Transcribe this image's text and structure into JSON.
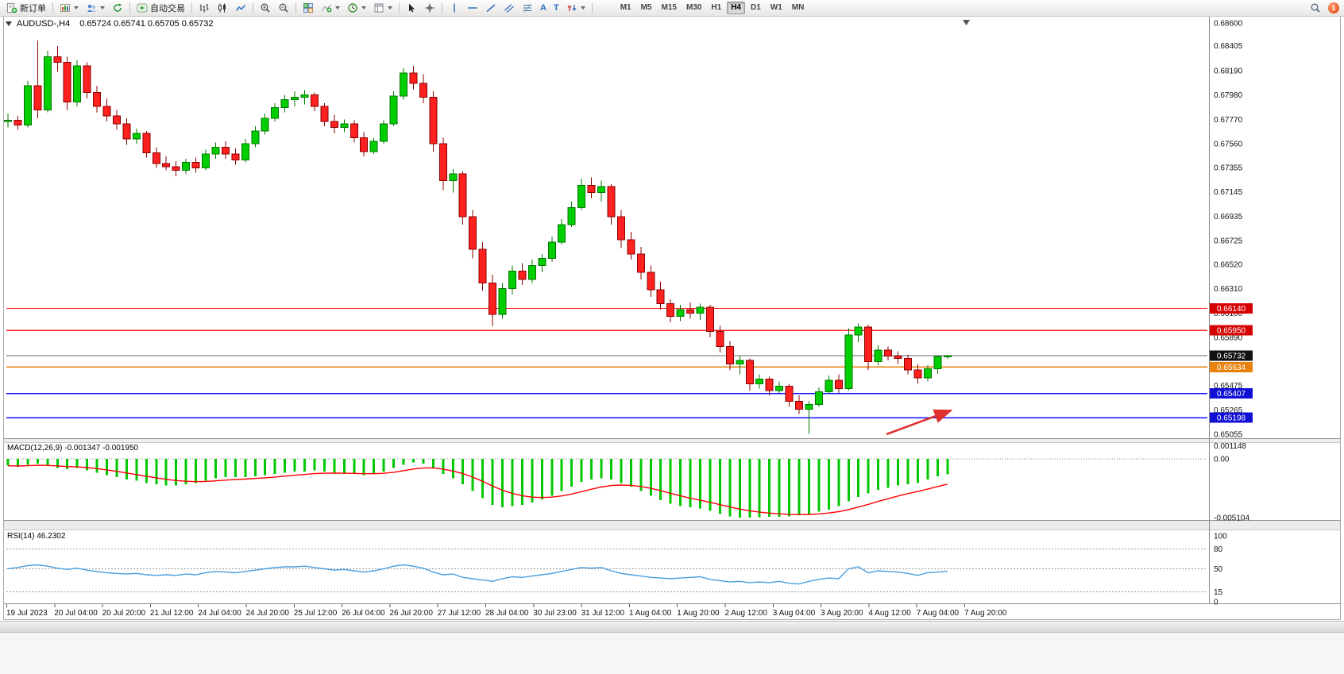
{
  "toolbar": {
    "new_order_label": "新订单",
    "autotrade_label": "自动交易",
    "text_icon_glyph": "A",
    "label_icon_glyph": "T",
    "timeframes": [
      "M1",
      "M5",
      "M15",
      "M30",
      "H1",
      "H4",
      "D1",
      "W1",
      "MN"
    ],
    "active_timeframe": "H4",
    "notification_badge": "1"
  },
  "chart_data": {
    "type": "candlestick",
    "title": "AUDUSD-,H4",
    "symbol_period": "AUDUSD-,H4",
    "ohlc_text": "0.65724 0.65741 0.65705 0.65732",
    "current": {
      "open": 0.65724,
      "high": 0.65741,
      "low": 0.65705,
      "close": 0.65732
    },
    "price_scale": [
      "0.68600",
      "0.68405",
      "0.68190",
      "0.67980",
      "0.67770",
      "0.67560",
      "0.67355",
      "0.67145",
      "0.66935",
      "0.66725",
      "0.66520",
      "0.66310",
      "0.66100",
      "0.65890",
      "0.65475",
      "0.65265",
      "0.65055"
    ],
    "time_labels": [
      "19 Jul 2023",
      "20 Jul 04:00",
      "20 Jul 20:00",
      "21 Jul 12:00",
      "24 Jul 04:00",
      "24 Jul 20:00",
      "25 Jul 12:00",
      "26 Jul 04:00",
      "26 Jul 20:00",
      "27 Jul 12:00",
      "28 Jul 04:00",
      "30 Jul 23:00",
      "31 Jul 12:00",
      "1 Aug 04:00",
      "1 Aug 20:00",
      "2 Aug 12:00",
      "3 Aug 04:00",
      "3 Aug 20:00",
      "4 Aug 12:00",
      "7 Aug 04:00",
      "7 Aug 20:00"
    ],
    "levels": [
      {
        "value": 0.6614,
        "text": "0.66140",
        "line": "#ff2020",
        "box": "#d60000"
      },
      {
        "value": 0.6595,
        "text": "0.65950",
        "line": "#ff2020",
        "box": "#d60000"
      },
      {
        "value": 0.65732,
        "text": "0.65732",
        "line": "#666666",
        "box": "#111111"
      },
      {
        "value": 0.65634,
        "text": "0.65634",
        "line": "#e8820c",
        "box": "#e8820c"
      },
      {
        "value": 0.65407,
        "text": "0.65407",
        "line": "#1414ff",
        "box": "#0f0fd6"
      },
      {
        "value": 0.65198,
        "text": "0.65198",
        "line": "#1414ff",
        "box": "#0f0fd6"
      }
    ],
    "colors": {
      "up": "#00CE00",
      "up_border": "#007700",
      "down": "#FF2020",
      "down_border": "#8b0000",
      "arrow": "#e03131"
    },
    "candles": [
      [
        0.6775,
        0.6782,
        0.677,
        0.6776
      ],
      [
        0.6776,
        0.678,
        0.6768,
        0.6772
      ],
      [
        0.6772,
        0.681,
        0.677,
        0.6806
      ],
      [
        0.6806,
        0.6845,
        0.6778,
        0.6785
      ],
      [
        0.6785,
        0.6836,
        0.6783,
        0.6831
      ],
      [
        0.6831,
        0.684,
        0.6818,
        0.6826
      ],
      [
        0.6826,
        0.6831,
        0.6785,
        0.6792
      ],
      [
        0.6792,
        0.6828,
        0.6788,
        0.6823
      ],
      [
        0.6823,
        0.6826,
        0.6795,
        0.68
      ],
      [
        0.68,
        0.6806,
        0.6783,
        0.6788
      ],
      [
        0.6788,
        0.6795,
        0.6775,
        0.678
      ],
      [
        0.678,
        0.6785,
        0.6768,
        0.6773
      ],
      [
        0.6773,
        0.6778,
        0.6755,
        0.676
      ],
      [
        0.676,
        0.6769,
        0.6756,
        0.6765
      ],
      [
        0.6765,
        0.6767,
        0.6744,
        0.6748
      ],
      [
        0.6748,
        0.6753,
        0.6735,
        0.6739
      ],
      [
        0.6739,
        0.6745,
        0.6733,
        0.6736
      ],
      [
        0.6736,
        0.6741,
        0.6728,
        0.6733
      ],
      [
        0.6733,
        0.6743,
        0.673,
        0.674
      ],
      [
        0.674,
        0.6744,
        0.6731,
        0.6735
      ],
      [
        0.6735,
        0.6751,
        0.6733,
        0.6747
      ],
      [
        0.6747,
        0.6757,
        0.6743,
        0.6753
      ],
      [
        0.6753,
        0.6758,
        0.6743,
        0.6747
      ],
      [
        0.6747,
        0.6752,
        0.6738,
        0.6742
      ],
      [
        0.6742,
        0.676,
        0.674,
        0.6756
      ],
      [
        0.6756,
        0.6771,
        0.6753,
        0.6767
      ],
      [
        0.6767,
        0.6782,
        0.6764,
        0.6778
      ],
      [
        0.6778,
        0.6791,
        0.6775,
        0.6787
      ],
      [
        0.6787,
        0.6798,
        0.6783,
        0.6794
      ],
      [
        0.6794,
        0.6801,
        0.6788,
        0.6796
      ],
      [
        0.6796,
        0.6802,
        0.679,
        0.6798
      ],
      [
        0.6798,
        0.68,
        0.6784,
        0.6788
      ],
      [
        0.6788,
        0.6791,
        0.6771,
        0.6775
      ],
      [
        0.6775,
        0.6781,
        0.6765,
        0.677
      ],
      [
        0.677,
        0.6777,
        0.6766,
        0.6773
      ],
      [
        0.6773,
        0.6776,
        0.6757,
        0.6761
      ],
      [
        0.6761,
        0.6766,
        0.6745,
        0.6749
      ],
      [
        0.6749,
        0.6761,
        0.6747,
        0.6758
      ],
      [
        0.6758,
        0.6776,
        0.6756,
        0.6773
      ],
      [
        0.6773,
        0.6801,
        0.6771,
        0.6797
      ],
      [
        0.6797,
        0.6821,
        0.6794,
        0.6817
      ],
      [
        0.6817,
        0.6823,
        0.6803,
        0.6808
      ],
      [
        0.6808,
        0.6816,
        0.6791,
        0.6796
      ],
      [
        0.6796,
        0.6801,
        0.6749,
        0.6756
      ],
      [
        0.6756,
        0.6761,
        0.6716,
        0.6724
      ],
      [
        0.6724,
        0.6734,
        0.6714,
        0.673
      ],
      [
        0.673,
        0.6732,
        0.6686,
        0.6693
      ],
      [
        0.6693,
        0.6699,
        0.6657,
        0.6665
      ],
      [
        0.6665,
        0.6671,
        0.6629,
        0.6636
      ],
      [
        0.6636,
        0.6643,
        0.6599,
        0.6609
      ],
      [
        0.6609,
        0.6636,
        0.6605,
        0.6631
      ],
      [
        0.6631,
        0.6651,
        0.6626,
        0.6646
      ],
      [
        0.6646,
        0.6653,
        0.6634,
        0.6639
      ],
      [
        0.6639,
        0.6656,
        0.6636,
        0.6651
      ],
      [
        0.6651,
        0.6661,
        0.6645,
        0.6657
      ],
      [
        0.6657,
        0.6676,
        0.6654,
        0.6671
      ],
      [
        0.6671,
        0.6691,
        0.6669,
        0.6686
      ],
      [
        0.6686,
        0.6706,
        0.6684,
        0.6701
      ],
      [
        0.6701,
        0.6726,
        0.6699,
        0.672
      ],
      [
        0.672,
        0.6727,
        0.6709,
        0.6714
      ],
      [
        0.6714,
        0.6724,
        0.6706,
        0.6719
      ],
      [
        0.6719,
        0.6721,
        0.6686,
        0.6693
      ],
      [
        0.6693,
        0.6699,
        0.6666,
        0.6673
      ],
      [
        0.6673,
        0.668,
        0.6656,
        0.6661
      ],
      [
        0.6661,
        0.6667,
        0.6639,
        0.6645
      ],
      [
        0.6645,
        0.6651,
        0.6624,
        0.663
      ],
      [
        0.663,
        0.6637,
        0.6613,
        0.6618
      ],
      [
        0.6618,
        0.6622,
        0.6602,
        0.6607
      ],
      [
        0.6607,
        0.6617,
        0.6603,
        0.6613
      ],
      [
        0.6613,
        0.6619,
        0.6605,
        0.661
      ],
      [
        0.661,
        0.6618,
        0.6604,
        0.6615
      ],
      [
        0.6615,
        0.6617,
        0.6589,
        0.6594
      ],
      [
        0.6594,
        0.6599,
        0.6576,
        0.6581
      ],
      [
        0.6581,
        0.6586,
        0.6561,
        0.6566
      ],
      [
        0.6566,
        0.6573,
        0.6557,
        0.6569
      ],
      [
        0.6569,
        0.6571,
        0.6543,
        0.6549
      ],
      [
        0.6549,
        0.6557,
        0.6545,
        0.6553
      ],
      [
        0.6553,
        0.6555,
        0.6539,
        0.6543
      ],
      [
        0.6543,
        0.6551,
        0.6541,
        0.6547
      ],
      [
        0.6547,
        0.6549,
        0.6529,
        0.6534
      ],
      [
        0.6534,
        0.6539,
        0.6523,
        0.6527
      ],
      [
        0.6527,
        0.6534,
        0.6506,
        0.6531
      ],
      [
        0.6531,
        0.6546,
        0.6529,
        0.6542
      ],
      [
        0.6542,
        0.6556,
        0.654,
        0.6552
      ],
      [
        0.6552,
        0.6557,
        0.6541,
        0.6545
      ],
      [
        0.6545,
        0.6597,
        0.6543,
        0.6591
      ],
      [
        0.6591,
        0.6601,
        0.6585,
        0.6598
      ],
      [
        0.6598,
        0.66,
        0.6561,
        0.6568
      ],
      [
        0.6568,
        0.6582,
        0.6565,
        0.6578
      ],
      [
        0.6578,
        0.6581,
        0.6569,
        0.6573
      ],
      [
        0.6573,
        0.6577,
        0.6566,
        0.6571
      ],
      [
        0.6571,
        0.6574,
        0.6557,
        0.6561
      ],
      [
        0.6561,
        0.6566,
        0.6549,
        0.6554
      ],
      [
        0.6554,
        0.6565,
        0.6551,
        0.6562
      ],
      [
        0.6562,
        0.6569,
        0.6558,
        0.65724
      ],
      [
        0.65724,
        0.65741,
        0.65705,
        0.65732
      ]
    ],
    "indicators": {
      "macd": {
        "name": "MACD(12,26,9)",
        "values": "-0.001347 -0.001950",
        "scale": [
          "0.001148",
          "0.00",
          "-0.005104"
        ],
        "hist_color": "#00C800",
        "signal_color": "#ff0000",
        "histogram": [
          -0.0006,
          -0.0007,
          -0.0005,
          -0.0004,
          -0.0006,
          -0.0008,
          -0.0009,
          -0.0008,
          -0.001,
          -0.0012,
          -0.0014,
          -0.0016,
          -0.0018,
          -0.0019,
          -0.0021,
          -0.0022,
          -0.0023,
          -0.0023,
          -0.0022,
          -0.0021,
          -0.0019,
          -0.0017,
          -0.0016,
          -0.0016,
          -0.0016,
          -0.0015,
          -0.0014,
          -0.0013,
          -0.0012,
          -0.0011,
          -0.0011,
          -0.001,
          -0.0011,
          -0.0012,
          -0.0013,
          -0.0013,
          -0.0014,
          -0.0013,
          -0.0011,
          -0.0008,
          -0.0005,
          -0.0003,
          -0.0004,
          -0.0008,
          -0.0013,
          -0.0017,
          -0.0022,
          -0.0028,
          -0.0034,
          -0.004,
          -0.0042,
          -0.0041,
          -0.004,
          -0.0038,
          -0.0035,
          -0.0032,
          -0.0028,
          -0.0024,
          -0.002,
          -0.0018,
          -0.0017,
          -0.0018,
          -0.0021,
          -0.0024,
          -0.0028,
          -0.0032,
          -0.0036,
          -0.0039,
          -0.0041,
          -0.0042,
          -0.0043,
          -0.0045,
          -0.0048,
          -0.005,
          -0.0051,
          -0.0051,
          -0.00508,
          -0.00505,
          -0.00502,
          -0.005,
          -0.0049,
          -0.0048,
          -0.0046,
          -0.0044,
          -0.0041,
          -0.0037,
          -0.0033,
          -0.003,
          -0.0027,
          -0.0025,
          -0.0023,
          -0.0022,
          -0.0021,
          -0.0018,
          -0.0015,
          -0.001347
        ]
      },
      "rsi": {
        "name": "RSI(14)",
        "value": "46.2302",
        "scale": [
          100,
          80,
          50,
          15,
          0
        ],
        "level_lines": [
          80,
          50,
          15
        ],
        "color": "#4a9edd",
        "values": [
          50,
          52,
          55,
          56,
          54,
          51,
          49,
          51,
          48,
          46,
          44,
          43,
          42,
          43,
          41,
          40,
          41,
          40,
          42,
          41,
          44,
          46,
          45,
          44,
          46,
          48,
          50,
          52,
          53,
          53,
          54,
          52,
          50,
          48,
          49,
          47,
          45,
          47,
          50,
          54,
          56,
          54,
          51,
          45,
          41,
          42,
          37,
          35,
          33,
          31,
          35,
          38,
          37,
          39,
          41,
          43,
          46,
          49,
          52,
          51,
          52,
          47,
          43,
          41,
          39,
          37,
          36,
          35,
          36,
          37,
          38,
          34,
          32,
          30,
          31,
          29,
          30,
          29,
          31,
          28,
          27,
          31,
          34,
          36,
          35,
          50,
          53,
          44,
          47,
          46,
          45,
          43,
          40,
          44,
          45,
          46.2302
        ]
      }
    }
  }
}
